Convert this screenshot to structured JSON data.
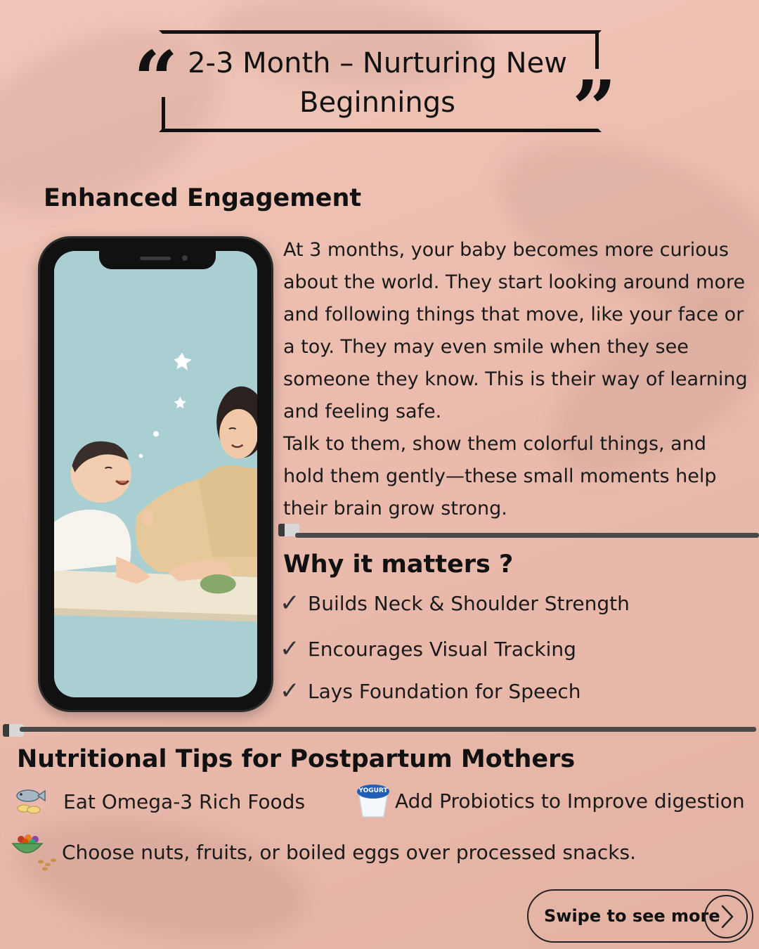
{
  "title": {
    "line1": "2-3 Month – Nurturing New",
    "line2": "Beginnings"
  },
  "section1": {
    "heading": "Enhanced Engagement",
    "paragraph1": "At 3 months, your baby becomes more curious\nabout the world. They start looking around more\nand following things that move, like your face or\na toy. They may even smile when they see\nsomeone they know. This is their way of learning\nand feeling safe.",
    "paragraph2": "Talk to them, show them colorful things, and\nhold them gently—these small moments help\ntheir brain grow strong."
  },
  "why_it_matters": {
    "heading": "Why it matters ?",
    "items": [
      "Builds Neck & Shoulder Strength",
      "Encourages Visual Tracking",
      "Lays Foundation for Speech"
    ],
    "check_glyph": "✓"
  },
  "nutrition": {
    "heading": "Nutritional Tips for Postpartum Mothers",
    "tips": [
      {
        "icon": "fish-omega3-icon",
        "text": "Eat Omega-3 Rich Foods"
      },
      {
        "icon": "yogurt-icon",
        "text": "Add Probiotics to Improve digestion",
        "badge": "YOGURT"
      },
      {
        "icon": "nuts-bowl-icon",
        "text": "Choose nuts, fruits, or boiled eggs over processed snacks."
      }
    ]
  },
  "swipe": {
    "label": "Swipe to see more"
  },
  "colors": {
    "background": "#ebbcae",
    "phone_screen": "#a9cfd3",
    "text": "#111111"
  }
}
